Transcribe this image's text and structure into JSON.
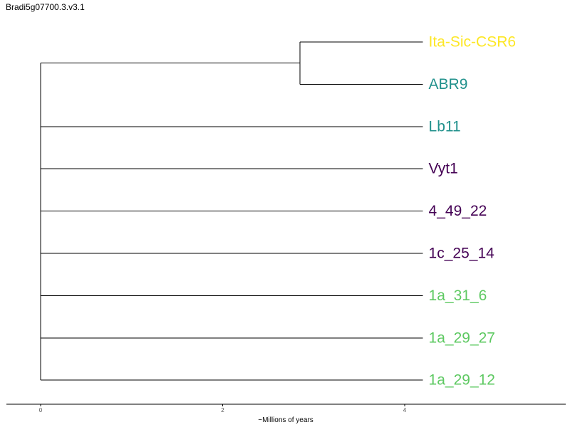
{
  "title": "Bradi5g07700.3.v3.1",
  "chart_data": {
    "type": "tree",
    "title": "Bradi5g07700.3.v3.1",
    "xlabel": "~Millions of years",
    "x_ticks": [
      0,
      2,
      4
    ],
    "xlim": [
      -0.37,
      5.8
    ],
    "grid": false,
    "legend": "none",
    "tips": [
      {
        "label": "Ita-Sic-CSR6",
        "color": "#fde725",
        "length": 4.2
      },
      {
        "label": "ABR9",
        "color": "#21918c",
        "length": 4.2
      },
      {
        "label": "Lb11",
        "color": "#21918c",
        "length": 4.2
      },
      {
        "label": "Vyt1",
        "color": "#440154",
        "length": 4.2
      },
      {
        "label": "4_49_22",
        "color": "#440154",
        "length": 4.2
      },
      {
        "label": "1c_25_14",
        "color": "#440154",
        "length": 4.2
      },
      {
        "label": "1a_31_6",
        "color": "#5ec962",
        "length": 4.2
      },
      {
        "label": "1a_29_27",
        "color": "#5ec962",
        "length": 4.2
      },
      {
        "label": "1a_29_12",
        "color": "#5ec962",
        "length": 4.2
      }
    ],
    "clades": [
      {
        "tips": [
          "Ita-Sic-CSR6",
          "ABR9"
        ],
        "node_age": 2.85
      }
    ],
    "root_age": 0
  }
}
